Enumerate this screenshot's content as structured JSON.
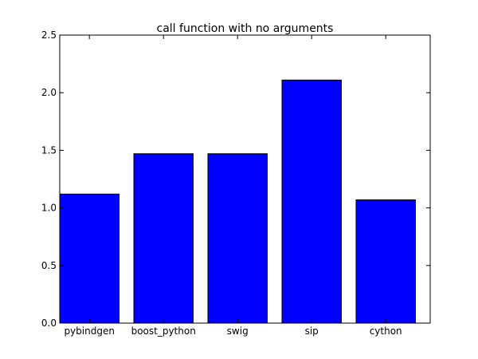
{
  "chart_data": {
    "type": "bar",
    "title": "call function with no arguments",
    "xlabel": "",
    "ylabel": "",
    "categories": [
      "pybindgen",
      "boost_python",
      "swig",
      "sip",
      "cython"
    ],
    "values": [
      1.12,
      1.47,
      1.47,
      2.11,
      1.07
    ],
    "ylim": [
      0,
      2.5
    ],
    "yticks": [
      "0.0",
      "0.5",
      "1.0",
      "1.5",
      "2.0",
      "2.5"
    ],
    "bar_color": "#0000ff",
    "edge_color": "#000000",
    "grid": false,
    "legend": "none"
  }
}
